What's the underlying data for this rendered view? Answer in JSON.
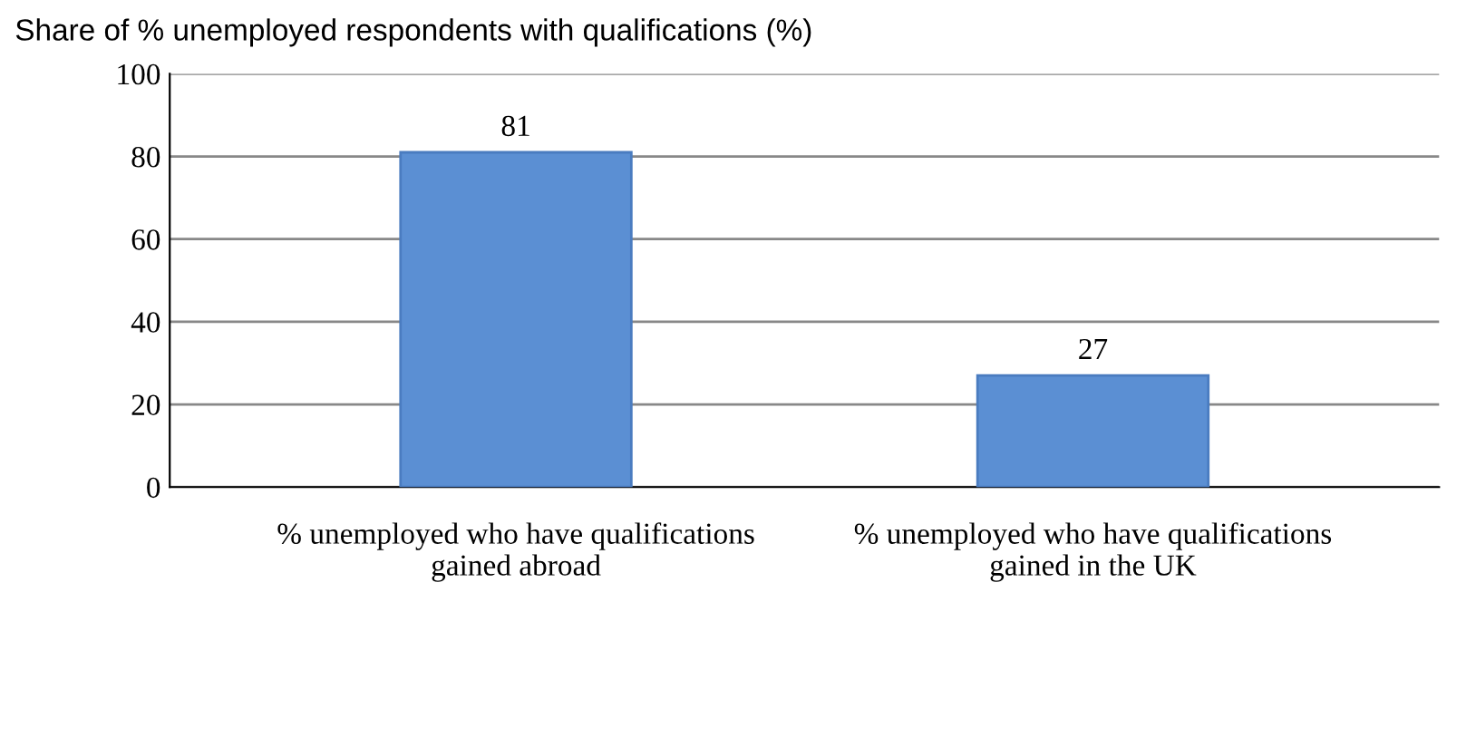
{
  "chart_data": {
    "type": "bar",
    "title": "Share of % unemployed respondents with qualifications (%)",
    "categories": [
      "% unemployed who have qualifications gained abroad",
      "% unemployed who have qualifications gained in the UK"
    ],
    "values": [
      81,
      27
    ],
    "color": "#5b8fd3",
    "ylim": [
      0,
      100
    ],
    "yticks": [
      0,
      20,
      40,
      60,
      80,
      100
    ],
    "grid": "y",
    "data_labels": true
  }
}
